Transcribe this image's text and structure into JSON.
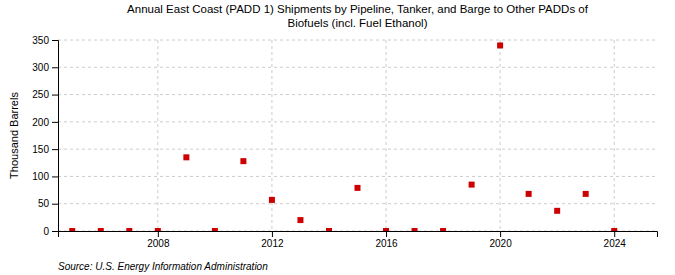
{
  "chart_data": {
    "type": "scatter",
    "title": "Annual East Coast (PADD 1) Shipments by Pipeline, Tanker, and Barge to Other PADDs of\nBiofuels (incl. Fuel Ethanol)",
    "ylabel": "Thousand Barrels",
    "source": "Source: U.S. Energy Information Administration",
    "x": [
      2005,
      2006,
      2007,
      2008,
      2009,
      2010,
      2011,
      2012,
      2013,
      2014,
      2015,
      2016,
      2017,
      2018,
      2019,
      2020,
      2021,
      2022,
      2023,
      2024
    ],
    "values": [
      0,
      0,
      0,
      0,
      135,
      0,
      128,
      57,
      20,
      0,
      79,
      0,
      0,
      0,
      85,
      340,
      68,
      37,
      68,
      0
    ],
    "color": "#cc0000",
    "marker": "square",
    "xlim": [
      2004.5,
      2025.5
    ],
    "xticks": [
      2008,
      2012,
      2016,
      2020,
      2024
    ],
    "ylim": [
      0,
      350
    ],
    "yticks": [
      0,
      50,
      100,
      150,
      200,
      250,
      300,
      350
    ],
    "grid": true
  }
}
